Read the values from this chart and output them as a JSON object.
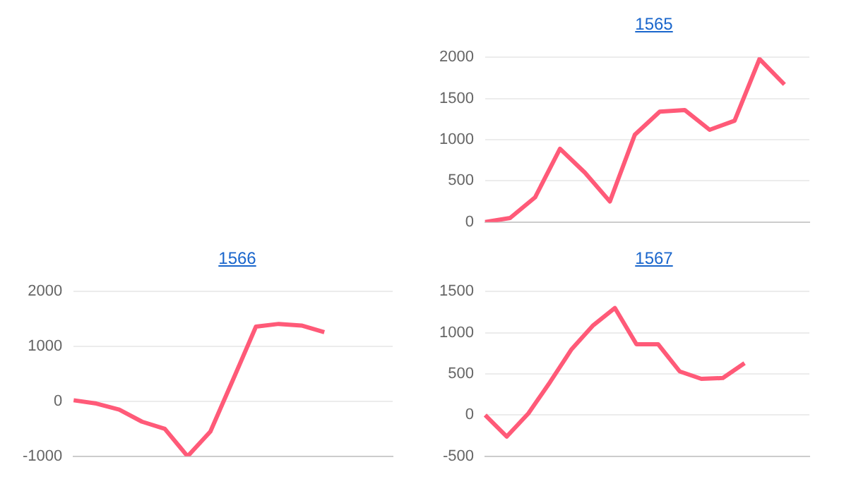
{
  "chart_data": [
    {
      "type": "line",
      "title": "1565",
      "categories": [
        null,
        null,
        null,
        null,
        null,
        null,
        null,
        null,
        null,
        null,
        null,
        null,
        null,
        null
      ],
      "series": [
        {
          "color": "#ff5a78",
          "values": [
            0,
            50,
            300,
            890,
            600,
            250,
            1060,
            1340,
            1360,
            1120,
            1230,
            1980,
            1670,
            null
          ]
        }
      ],
      "ylim": [
        0,
        2000
      ],
      "yticks": [
        0,
        500,
        1000,
        1500,
        2000
      ],
      "grid": "y",
      "tick_labels": "y",
      "marker": "none",
      "legend": false
    },
    {
      "type": "line",
      "title": "1566",
      "categories": [
        null,
        null,
        null,
        null,
        null,
        null,
        null,
        null,
        null,
        null,
        null,
        null,
        null,
        null,
        null
      ],
      "series": [
        {
          "color": "#ff5a78",
          "values": [
            20,
            -40,
            -150,
            -370,
            -500,
            -1000,
            -550,
            400,
            1360,
            1410,
            1380,
            1260,
            null,
            null,
            null
          ]
        }
      ],
      "ylim": [
        -1000,
        2000
      ],
      "yticks": [
        -1000,
        0,
        1000,
        2000
      ],
      "grid": "y",
      "tick_labels": "y",
      "marker": "none",
      "legend": false
    },
    {
      "type": "line",
      "title": "1567",
      "categories": [
        null,
        null,
        null,
        null,
        null,
        null,
        null,
        null,
        null,
        null,
        null,
        null,
        null,
        null,
        null,
        null
      ],
      "series": [
        {
          "color": "#ff5a78",
          "values": [
            0,
            -260,
            20,
            400,
            800,
            1090,
            1300,
            860,
            860,
            530,
            440,
            450,
            630,
            null,
            null,
            null
          ]
        }
      ],
      "ylim": [
        -500,
        1500
      ],
      "yticks": [
        -500,
        0,
        500,
        1000,
        1500
      ],
      "grid": "y",
      "tick_labels": "y",
      "marker": "none",
      "legend": false
    }
  ]
}
